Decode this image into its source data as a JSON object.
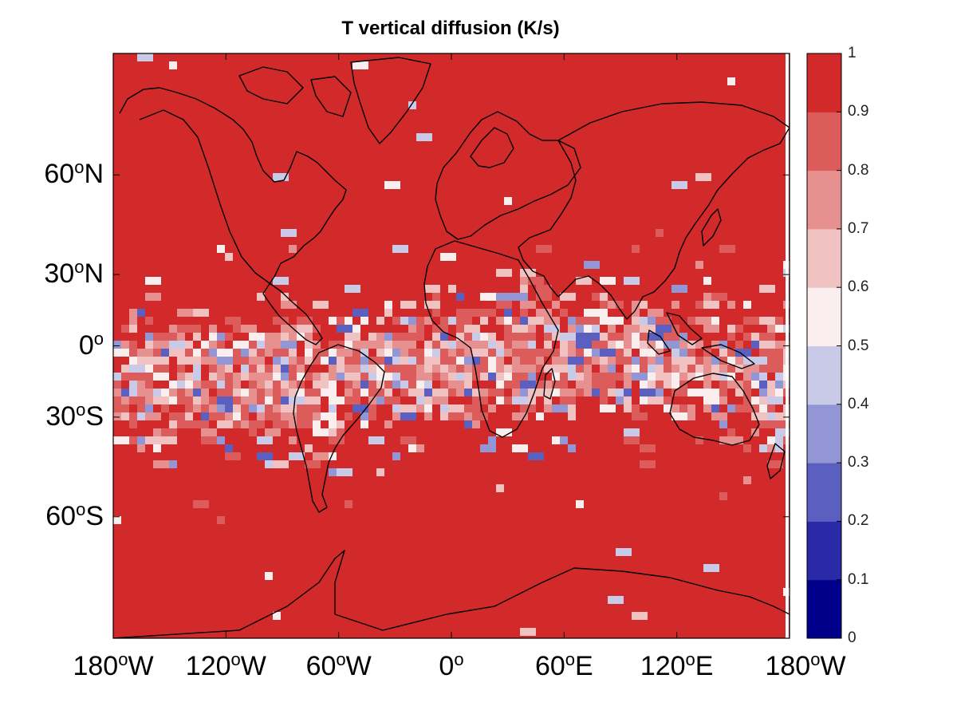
{
  "title": "T vertical diffusion (K/s)",
  "map": {
    "projection": "mercator",
    "lon_range": [
      -180,
      180
    ],
    "lat_range": [
      -78,
      78
    ],
    "base_color": "#d22a2a",
    "coastline_color": "#000000",
    "coastline": "world continents"
  },
  "y_ticks": [
    {
      "deg": "60",
      "sup": "o",
      "hem": "N",
      "lat": 60
    },
    {
      "deg": "30",
      "sup": "o",
      "hem": "N",
      "lat": 30
    },
    {
      "deg": "0",
      "sup": "o",
      "hem": "",
      "lat": 0
    },
    {
      "deg": "30",
      "sup": "o",
      "hem": "S",
      "lat": -30
    },
    {
      "deg": "60",
      "sup": "o",
      "hem": "S",
      "lat": -60
    }
  ],
  "x_ticks": [
    {
      "deg": "180",
      "sup": "o",
      "hem": "W",
      "lon": -180
    },
    {
      "deg": "120",
      "sup": "o",
      "hem": "W",
      "lon": -120
    },
    {
      "deg": "60",
      "sup": "o",
      "hem": "W",
      "lon": -60
    },
    {
      "deg": "0",
      "sup": "o",
      "hem": "",
      "lon": 0
    },
    {
      "deg": "60",
      "sup": "o",
      "hem": "E",
      "lon": 60
    },
    {
      "deg": "120",
      "sup": "o",
      "hem": "E",
      "lon": 120
    },
    {
      "deg": "180",
      "sup": "o",
      "hem": "W",
      "lon": 180
    }
  ],
  "colorbar": {
    "ticks": [
      "0",
      "0.1",
      "0.2",
      "0.3",
      "0.4",
      "0.5",
      "0.6",
      "0.7",
      "0.8",
      "0.9",
      "1"
    ],
    "colors": [
      "#00008b",
      "#2a2aa8",
      "#5a5fc0",
      "#9296d4",
      "#c8cae8",
      "#fbeeee",
      "#f1c2c2",
      "#e79090",
      "#dc5c5c",
      "#d22a2a"
    ]
  }
}
